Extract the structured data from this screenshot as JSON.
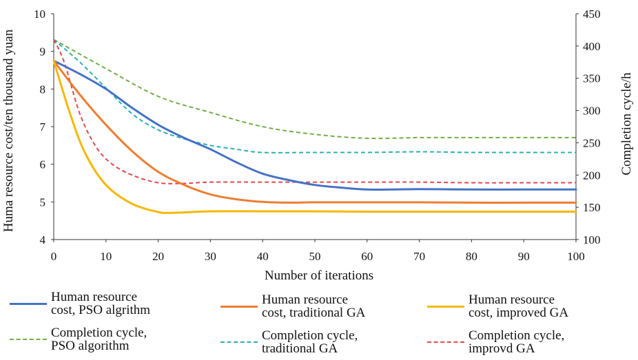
{
  "chart_data": {
    "type": "line",
    "xlabel": "Number of iterations",
    "ylabel_left": "Huma resource cost/ten thousand yuan",
    "ylabel_right": "Completion cycle/h",
    "xlim": [
      0,
      100
    ],
    "ylim_left": [
      4,
      10
    ],
    "ylim_right": [
      100,
      450
    ],
    "xticks": [
      "0",
      "10",
      "20",
      "30",
      "40",
      "50",
      "60",
      "70",
      "80",
      "90",
      "100"
    ],
    "yticks_left": [
      "4",
      "5",
      "6",
      "7",
      "8",
      "9",
      "10"
    ],
    "yticks_right": [
      "100",
      "150",
      "200",
      "250",
      "300",
      "350",
      "400",
      "450"
    ],
    "grid": false,
    "legend_position": "bottom",
    "series": [
      {
        "name": "Human resource\ncost, PSO algrithm",
        "axis": "left",
        "style": "solid",
        "color": "#4472C4",
        "x": [
          0,
          5,
          10,
          15,
          20,
          25,
          30,
          35,
          40,
          45,
          50,
          55,
          60,
          65,
          70,
          80,
          90,
          100
        ],
        "y": [
          8.75,
          8.4,
          8.0,
          7.5,
          7.05,
          6.7,
          6.4,
          6.05,
          5.75,
          5.58,
          5.45,
          5.38,
          5.33,
          5.33,
          5.34,
          5.33,
          5.33,
          5.33
        ]
      },
      {
        "name": "Human resource\ncost, traditional GA",
        "axis": "left",
        "style": "solid",
        "color": "#ED7D31",
        "x": [
          0,
          5,
          10,
          15,
          20,
          25,
          30,
          35,
          40,
          45,
          50,
          60,
          70,
          80,
          90,
          100
        ],
        "y": [
          8.75,
          7.85,
          7.05,
          6.35,
          5.8,
          5.45,
          5.2,
          5.07,
          5.0,
          4.98,
          4.99,
          4.99,
          4.99,
          4.98,
          4.98,
          4.98
        ]
      },
      {
        "name": "Human resource\ncost, improved GA",
        "axis": "left",
        "style": "solid",
        "color": "#F5B800",
        "x": [
          0,
          3,
          6,
          10,
          15,
          20,
          22,
          25,
          30,
          40,
          50,
          60,
          70,
          80,
          90,
          100
        ],
        "y": [
          8.75,
          7.4,
          6.3,
          5.45,
          4.95,
          4.73,
          4.71,
          4.72,
          4.75,
          4.75,
          4.75,
          4.74,
          4.74,
          4.74,
          4.74,
          4.74
        ]
      },
      {
        "name": "Completion cycle,\nPSO algorithm",
        "axis": "right",
        "style": "dashed",
        "color": "#70AD47",
        "x": [
          0,
          10,
          20,
          30,
          40,
          50,
          60,
          70,
          80,
          90,
          100
        ],
        "y": [
          410,
          365,
          322,
          297,
          275,
          263,
          257,
          258,
          258,
          258,
          258
        ]
      },
      {
        "name": "Completion cycle,\ntraditional GA",
        "axis": "right",
        "style": "dashed",
        "color": "#2AB0AE",
        "x": [
          0,
          5,
          10,
          15,
          20,
          25,
          30,
          35,
          40,
          50,
          60,
          70,
          80,
          90,
          100
        ],
        "y": [
          410,
          375,
          335,
          295,
          270,
          256,
          246,
          240,
          235,
          235,
          235,
          236,
          235,
          235,
          235
        ]
      },
      {
        "name": "Completion cycle,\nimprovd GA",
        "axis": "right",
        "style": "dashed",
        "color": "#E0474C",
        "x": [
          0,
          2,
          5,
          8,
          11,
          15,
          20,
          25,
          30,
          40,
          50,
          60,
          70,
          80,
          90,
          100
        ],
        "y": [
          410,
          375,
          295,
          245,
          218,
          200,
          188,
          187,
          189,
          189,
          189,
          189,
          189,
          188,
          188,
          188
        ]
      }
    ]
  }
}
